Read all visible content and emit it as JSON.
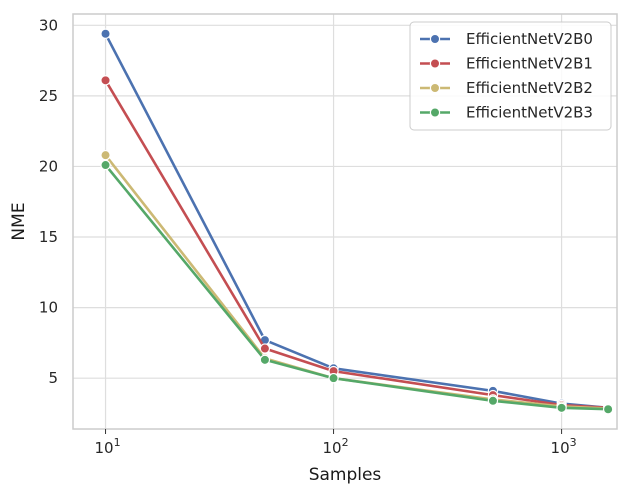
{
  "chart_data": {
    "type": "line",
    "xlabel": "Samples",
    "ylabel": "NME",
    "xscale": "log",
    "xlim": [
      7.2,
      1750
    ],
    "ylim": [
      1.4,
      30.8
    ],
    "grid": true,
    "legend_position": "top-right",
    "x_ticks": [
      {
        "value": 10,
        "base": "10",
        "exp": "1"
      },
      {
        "value": 100,
        "base": "10",
        "exp": "2"
      },
      {
        "value": 1000,
        "base": "10",
        "exp": "3"
      }
    ],
    "y_ticks": [
      5,
      10,
      15,
      20,
      25,
      30
    ],
    "x": [
      10,
      50,
      100,
      500,
      1000,
      1600
    ],
    "series": [
      {
        "name": "EfficientNetV2B0",
        "color": "#4c72b0",
        "values": [
          29.4,
          7.7,
          5.7,
          4.1,
          3.2,
          2.9
        ]
      },
      {
        "name": "EfficientNetV2B1",
        "color": "#c44e52",
        "values": [
          26.1,
          7.1,
          5.5,
          3.8,
          3.1,
          2.9
        ]
      },
      {
        "name": "EfficientNetV2B2",
        "color": "#ccb974",
        "values": [
          20.8,
          6.4,
          5.0,
          3.5,
          3.0,
          2.85
        ]
      },
      {
        "name": "EfficientNetV2B3",
        "color": "#55a868",
        "values": [
          20.1,
          6.3,
          5.0,
          3.4,
          2.9,
          2.8
        ]
      }
    ]
  }
}
